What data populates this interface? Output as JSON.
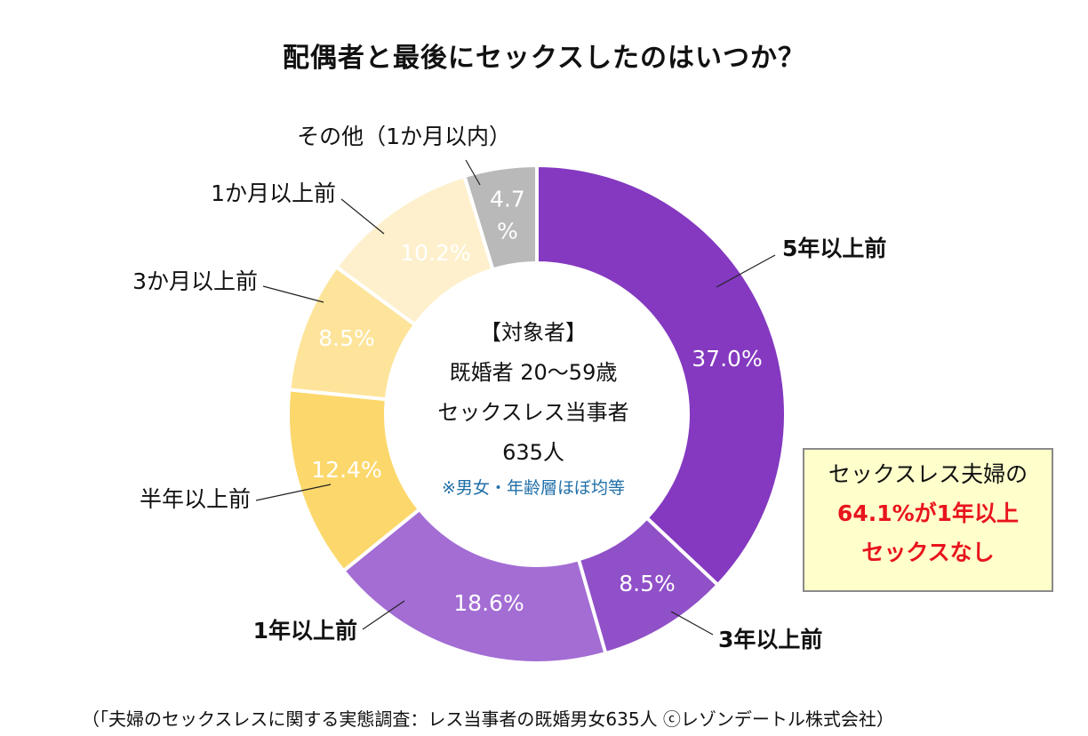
{
  "chart_data": {
    "type": "pie",
    "title": "配偶者と最後にセックスしたのはいつか？",
    "donut": true,
    "slices": [
      {
        "category": "5年以上前",
        "value": 37.0,
        "label": "37.0%",
        "color": "#8439c0",
        "label_color": "#ffffff",
        "bold": true
      },
      {
        "category": "3年以上前",
        "value": 8.5,
        "label": "8.5%",
        "color": "#9050c8",
        "label_color": "#ffffff",
        "bold": true
      },
      {
        "category": "1年以上前",
        "value": 18.6,
        "label": "18.6%",
        "color": "#a36dd4",
        "label_color": "#ffffff",
        "bold": true
      },
      {
        "category": "半年以上前",
        "value": 12.4,
        "label": "12.4%",
        "color": "#fcd86c",
        "label_color": "#ffffff",
        "bold": false
      },
      {
        "category": "3か月以上前",
        "value": 8.5,
        "label": "8.5%",
        "color": "#fde49a",
        "label_color": "#ffffff",
        "bold": false
      },
      {
        "category": "1か月以上前",
        "value": 10.2,
        "label": "10.2%",
        "color": "#fef0cc",
        "label_color": "#c8c8c8",
        "bold": false
      },
      {
        "category": "その他（1か月以内）",
        "value": 4.7,
        "label": "4.7%",
        "color": "#b9b9b9",
        "label_color": "#ffffff",
        "bold": false
      }
    ]
  },
  "center": {
    "line1": "【対象者】",
    "line2": "既婚者 20～59歳",
    "line3": "セックスレス当事者",
    "line4": "635人",
    "note": "※男女・年齢層ほぼ均等"
  },
  "callout": {
    "line1": "セックスレス夫婦の",
    "line2": "64.1%が1年以上",
    "line3": "セックスなし"
  },
  "source": "（「夫婦のセックスレスに関する実態調査：レス当事者の既婚男女635人 ⓒレゾンデートル株式会社）"
}
